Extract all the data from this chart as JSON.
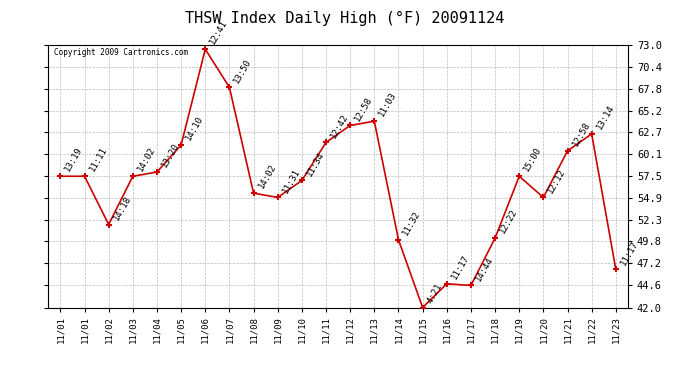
{
  "title": "THSW Index Daily High (°F) 20091124",
  "copyright": "Copyright 2009 Cartronics.com",
  "x_labels": [
    "11/01",
    "11/01",
    "11/02",
    "11/03",
    "11/04",
    "11/05",
    "11/06",
    "11/07",
    "11/08",
    "11/09",
    "11/10",
    "11/11",
    "11/12",
    "11/13",
    "11/14",
    "11/15",
    "11/16",
    "11/17",
    "11/18",
    "11/19",
    "11/20",
    "11/21",
    "11/22",
    "11/23"
  ],
  "y_values": [
    57.5,
    57.5,
    51.8,
    57.5,
    58.0,
    61.2,
    72.5,
    68.0,
    55.5,
    55.0,
    57.0,
    61.5,
    63.5,
    64.0,
    50.0,
    42.0,
    44.8,
    44.6,
    50.2,
    57.5,
    55.0,
    60.5,
    62.5,
    46.5
  ],
  "point_labels": [
    "13:19",
    "11:11",
    "14:18",
    "14:02",
    "13:20",
    "14:10",
    "12:41",
    "13:50",
    "14:02",
    "11:31",
    "11:34",
    "12:42",
    "12:58",
    "11:03",
    "11:32",
    "4:21",
    "11:17",
    "14:44",
    "12:22",
    "15:00",
    "12:12",
    "12:58",
    "13:14",
    "11:17"
  ],
  "ylim": [
    42.0,
    73.0
  ],
  "yticks": [
    42.0,
    44.6,
    47.2,
    49.8,
    52.3,
    54.9,
    57.5,
    60.1,
    62.7,
    65.2,
    67.8,
    70.4,
    73.0
  ],
  "line_color": "#cc0000",
  "marker_color": "#cc0000",
  "bg_color": "#ffffff",
  "grid_color": "#bbbbbb",
  "title_fontsize": 11,
  "label_fontsize": 6.5,
  "xtick_fontsize": 6.5,
  "ytick_fontsize": 7.5
}
